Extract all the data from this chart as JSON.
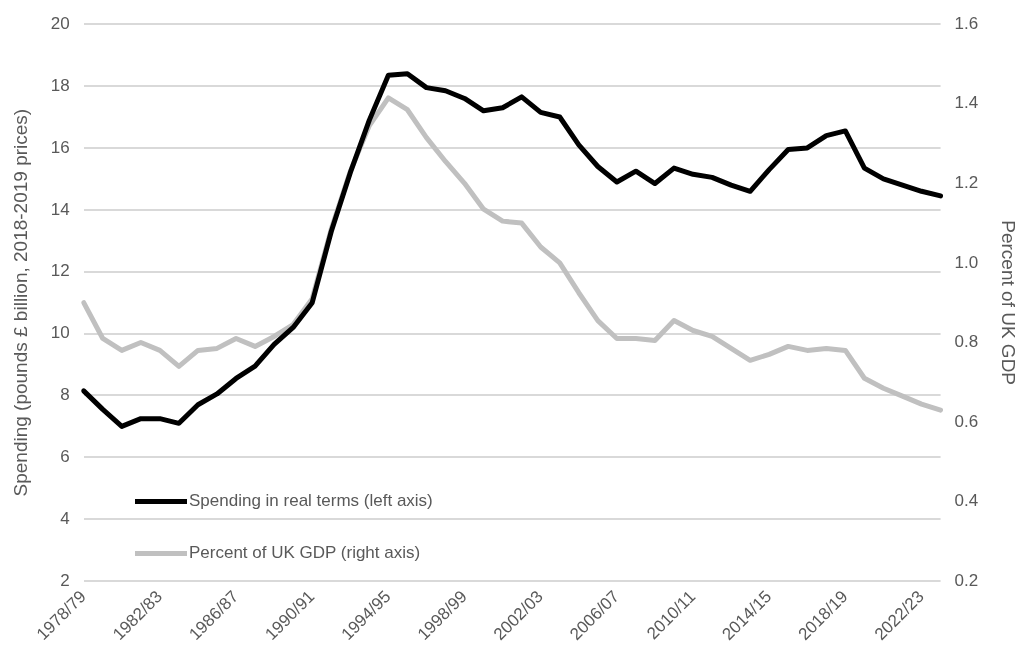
{
  "chart_data": {
    "type": "line",
    "categories": [
      "1978/79",
      null,
      null,
      null,
      "1982/83",
      null,
      null,
      null,
      "1986/87",
      null,
      null,
      null,
      "1990/91",
      null,
      null,
      null,
      "1994/95",
      null,
      null,
      null,
      "1998/99",
      null,
      null,
      null,
      "2002/03",
      null,
      null,
      null,
      "2006/07",
      null,
      null,
      null,
      "2010/11",
      null,
      null,
      null,
      "2014/15",
      null,
      null,
      null,
      "2018/19",
      null,
      null,
      null,
      "2022/23",
      null
    ],
    "series": [
      {
        "name": "Spending in real terms (left axis)",
        "color": "#000000",
        "values": [
          8.15,
          7.55,
          7.0,
          7.25,
          7.25,
          7.1,
          7.7,
          8.05,
          8.55,
          8.95,
          9.65,
          10.2,
          11.0,
          13.3,
          15.2,
          16.9,
          18.35,
          18.4,
          17.95,
          17.85,
          17.6,
          17.2,
          17.3,
          17.65,
          17.15,
          17.0,
          16.1,
          15.4,
          14.9,
          15.25,
          14.85,
          15.35,
          15.15,
          15.05,
          14.8,
          14.6,
          15.3,
          15.95,
          16.0,
          16.4,
          16.55,
          15.35,
          15.0,
          14.8,
          14.6,
          14.45
        ]
      },
      {
        "name": "Percent of UK GDP (right axis)",
        "color": "#c0c0c0",
        "axis": "y2",
        "values": [
          0.9,
          0.81,
          0.78,
          0.8,
          0.78,
          0.74,
          0.78,
          0.785,
          0.81,
          0.79,
          0.815,
          0.845,
          0.91,
          1.085,
          1.23,
          1.345,
          1.415,
          1.385,
          1.315,
          1.255,
          1.2,
          1.135,
          1.105,
          1.1,
          1.04,
          1.0,
          0.925,
          0.855,
          0.81,
          0.81,
          0.805,
          0.855,
          0.83,
          0.815,
          0.785,
          0.755,
          0.77,
          0.79,
          0.78,
          0.785,
          0.78,
          0.71,
          0.685,
          0.665,
          0.645,
          0.63
        ]
      }
    ],
    "ylabel": "Spending (pounds £ billion, 2018-2019 prices)",
    "y2label": "Percent of UK GDP",
    "ylim": [
      2,
      20
    ],
    "yticks": [
      2,
      4,
      6,
      8,
      10,
      12,
      14,
      16,
      18,
      20
    ],
    "y2lim": [
      0.2,
      1.6
    ],
    "y2ticks": [
      {
        "value": 0.2,
        "label": "0.2"
      },
      {
        "value": 0.4,
        "label": "0.4"
      },
      {
        "value": 0.6,
        "label": "0.6"
      },
      {
        "value": 0.8,
        "label": "0.8"
      },
      {
        "value": 1.0,
        "label": "1.0"
      },
      {
        "value": 1.2,
        "label": "1.2"
      },
      {
        "value": 1.4,
        "label": "1.4"
      },
      {
        "value": 1.6,
        "label": "1.6"
      }
    ],
    "grid": "y",
    "legend": "bottom left",
    "marker": "none",
    "line_style": "solid"
  }
}
